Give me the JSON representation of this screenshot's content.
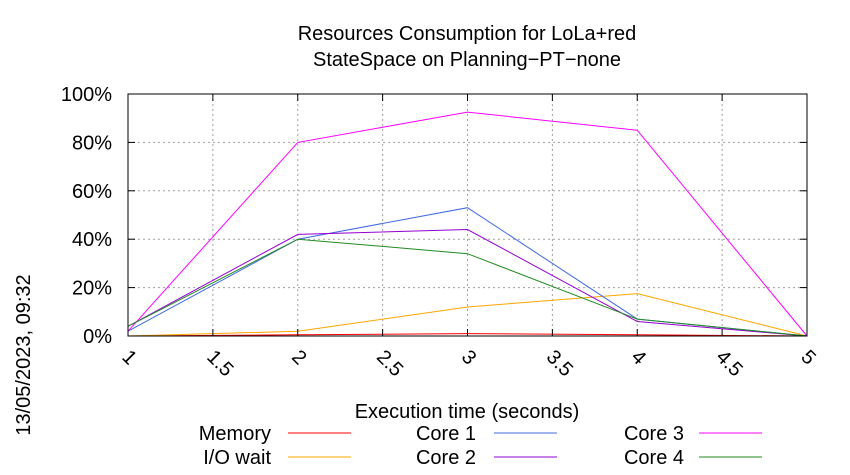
{
  "chart_data": {
    "type": "line",
    "title": "Resources Consumption for LoLa+red",
    "subtitle": "StateSpace on Planning−PT−none",
    "xlabel": "Execution time (seconds)",
    "ylabel": "",
    "side_label": "13/05/2023, 09:32",
    "xlim": [
      1,
      5
    ],
    "ylim": [
      0,
      100
    ],
    "grid": true,
    "legend_position": "bottom",
    "x_ticks": [
      1,
      1.5,
      2,
      2.5,
      3,
      3.5,
      4,
      4.5,
      5
    ],
    "x_tick_labels": [
      "1",
      "1.5",
      "2",
      "2.5",
      "3",
      "3.5",
      "4",
      "4.5",
      "5"
    ],
    "y_ticks": [
      0,
      20,
      40,
      60,
      80,
      100
    ],
    "y_tick_labels": [
      "0%",
      "20%",
      "40%",
      "60%",
      "80%",
      "100%"
    ],
    "x": [
      1,
      2,
      3,
      4,
      5
    ],
    "series": [
      {
        "name": "Memory",
        "color": "#ff0000",
        "values": [
          0,
          0.5,
          1,
          0.5,
          0
        ]
      },
      {
        "name": "I/O wait",
        "color": "#ffa500",
        "values": [
          0,
          2,
          12,
          17.5,
          0
        ]
      },
      {
        "name": "Core 1",
        "color": "#4169e1",
        "values": [
          2,
          40,
          53,
          7,
          0
        ]
      },
      {
        "name": "Core 2",
        "color": "#9400d3",
        "values": [
          4,
          42,
          44,
          6,
          0
        ]
      },
      {
        "name": "Core 3",
        "color": "#ff00ff",
        "values": [
          2,
          80,
          92.5,
          85,
          0
        ]
      },
      {
        "name": "Core 4",
        "color": "#228b22",
        "values": [
          4,
          40,
          34,
          7,
          0
        ]
      }
    ]
  }
}
